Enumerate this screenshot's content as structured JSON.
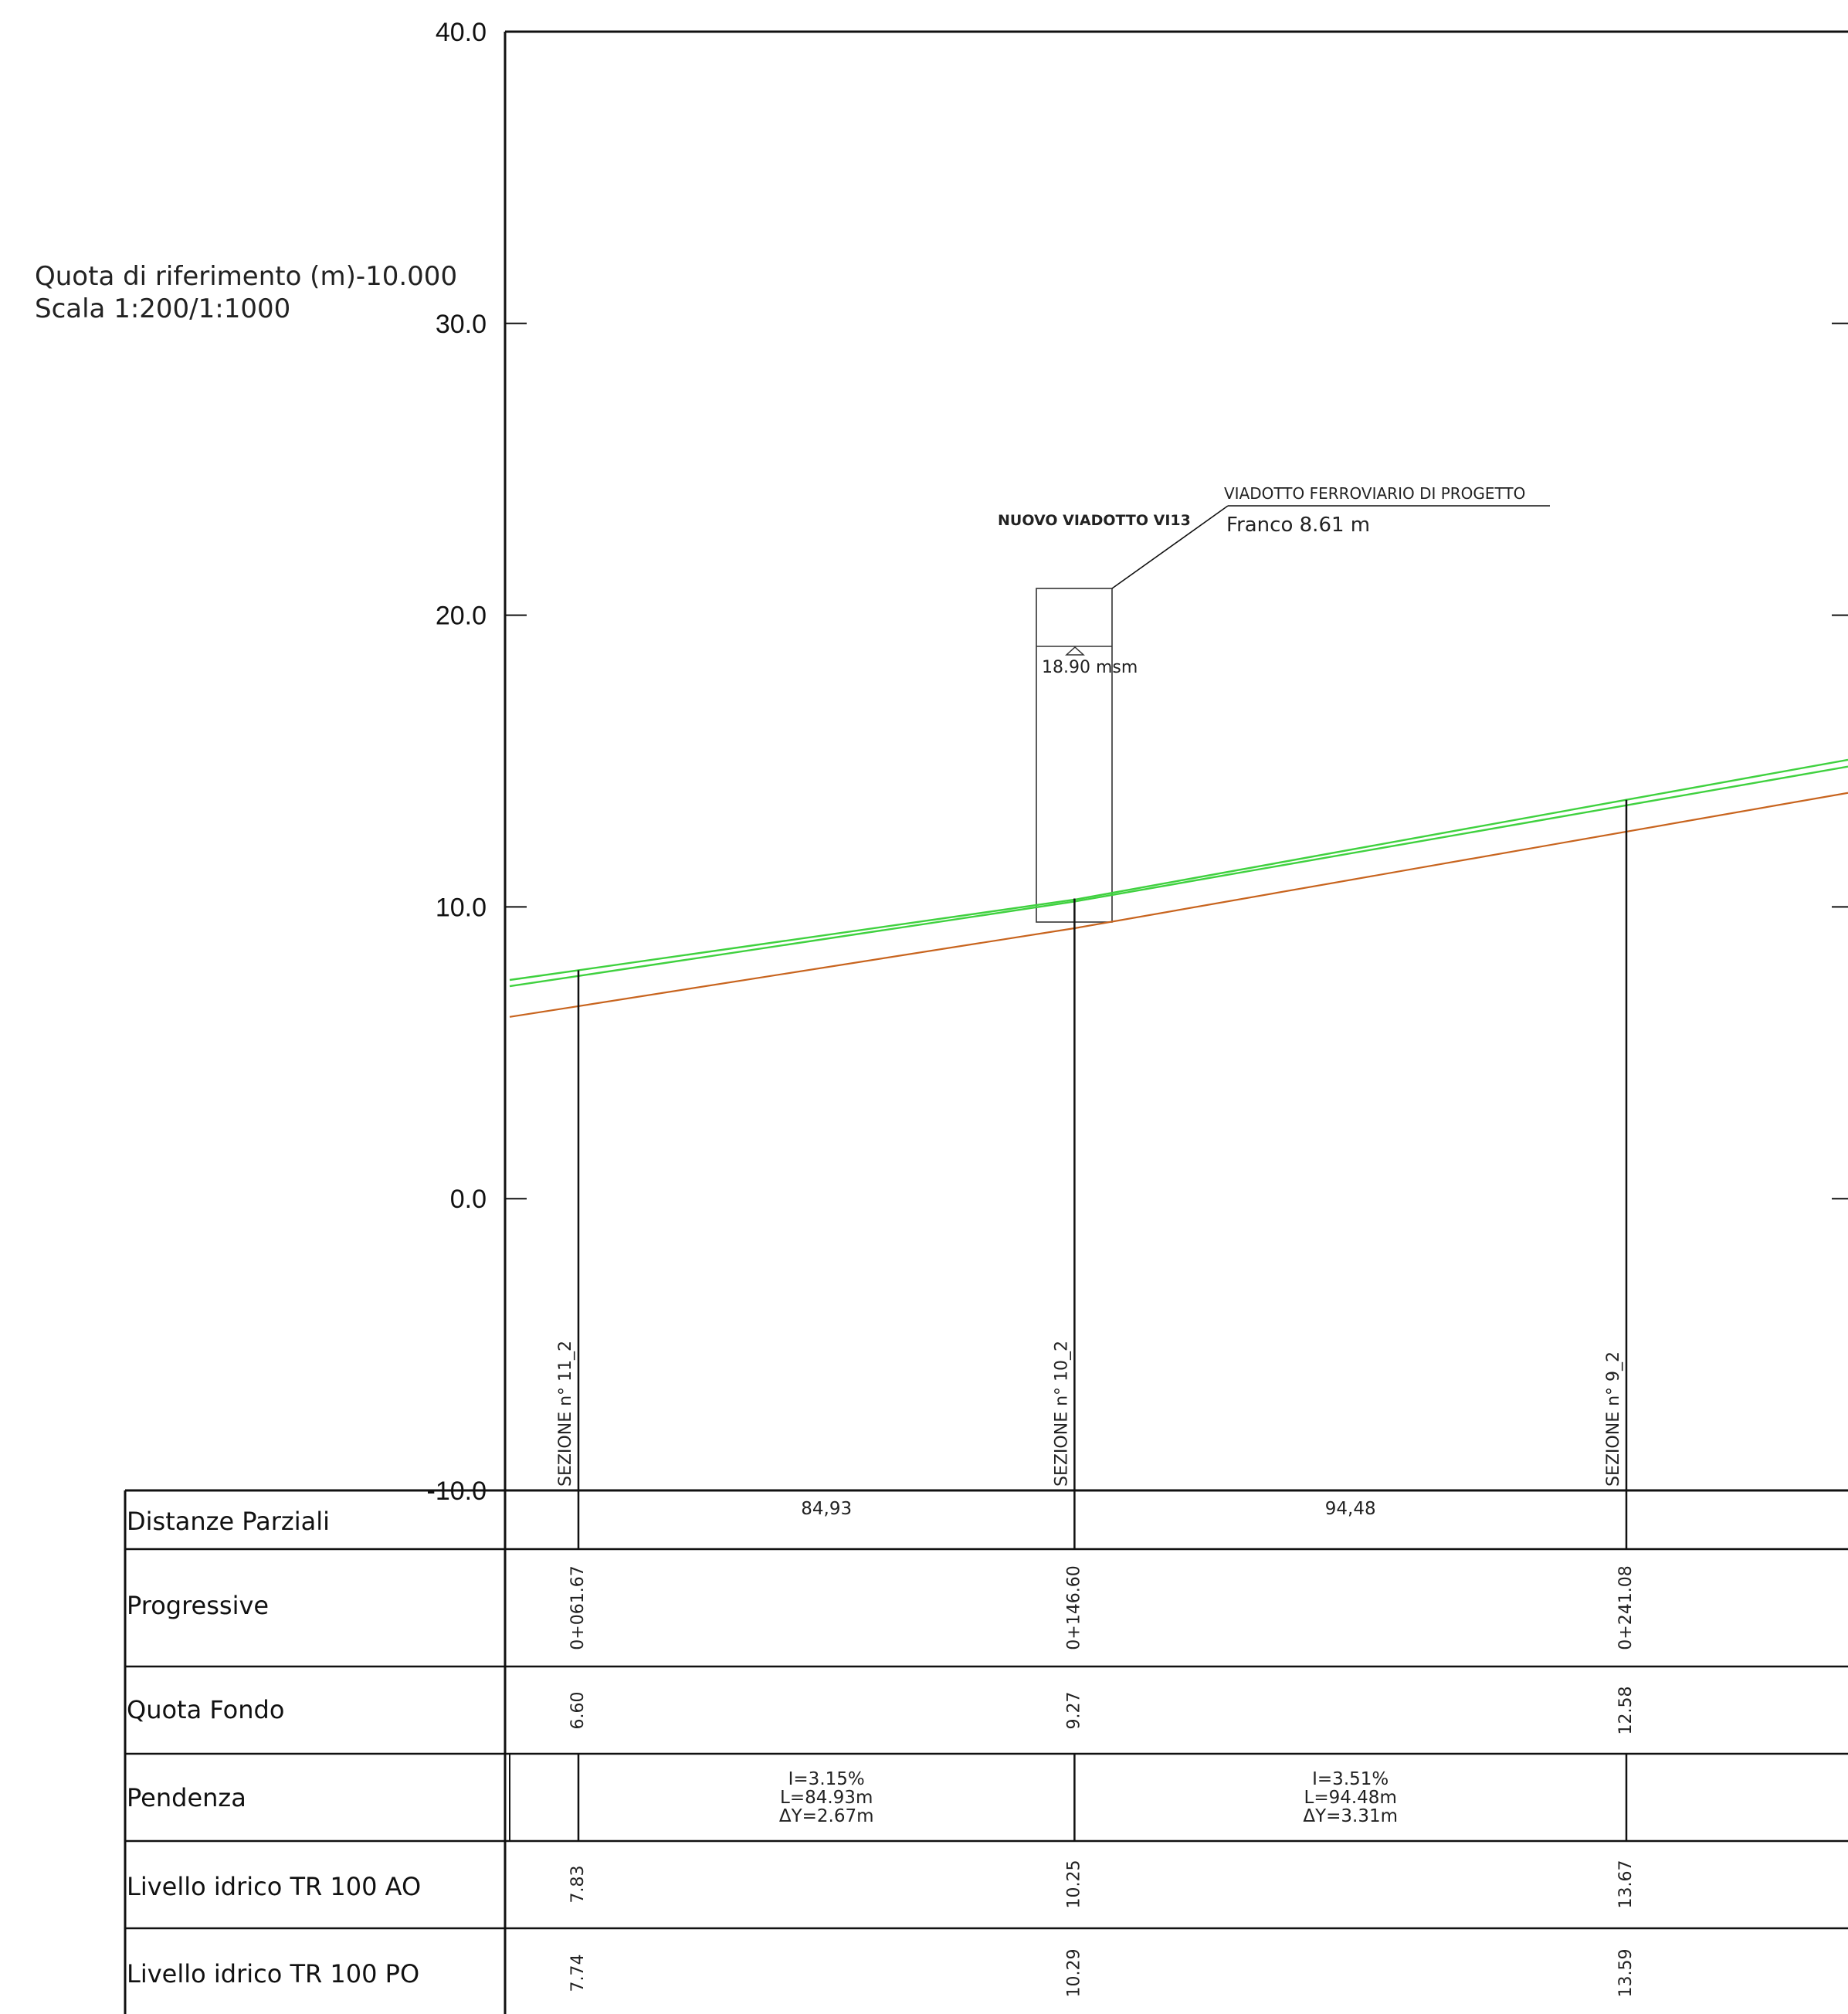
{
  "header": {
    "reference_line": "Quota di riferimento (m)-10.000",
    "scale_line": "Scala 1:200/1:1000"
  },
  "annotations": {
    "viaduct_name": "NUOVO VIADOTTO VI13",
    "viaduct_desc": "VIADOTTO FERROVIARIO DI PROGETTO",
    "franco": "Franco 8.61 m",
    "deck_level": "18.90 msm"
  },
  "sections": [
    {
      "label": "SEZIONE n° 11_2",
      "progressive": "0+061.67",
      "quota_fondo": "6.60",
      "livello_ao": "7.83",
      "livello_po": "7.74"
    },
    {
      "label": "SEZIONE n° 10_2",
      "progressive": "0+146.60",
      "quota_fondo": "9.27",
      "livello_ao": "10.25",
      "livello_po": "10.29"
    },
    {
      "label": "SEZIONE n° 9_2",
      "progressive": "0+241.08",
      "quota_fondo": "12.58",
      "livello_ao": "13.67",
      "livello_po": "13.59"
    }
  ],
  "segments": [
    {
      "distance": "84,93",
      "slope": "I=3.15%",
      "length": "L=84.93m",
      "delta": "ΔY=2.67m"
    },
    {
      "distance": "94,48",
      "slope": "I=3.51%",
      "length": "L=94.48m",
      "delta": "ΔY=3.31m"
    }
  ],
  "table": {
    "rows": [
      "Distanze Parziali",
      "Progressive",
      "Quota Fondo",
      "Pendenza",
      "Livello idrico TR 100 AO",
      "Livello idrico TR 100 PO"
    ]
  },
  "colors": {
    "water_surface": "#3fd13f",
    "bed": "#c8641e",
    "lines": "#111111"
  },
  "chart_data": {
    "type": "line",
    "title": "",
    "xlabel": "",
    "ylabel": "",
    "ylim": [
      -10,
      40
    ],
    "yticks": [
      "40.0",
      "30.0",
      "20.0",
      "10.0",
      "0.0",
      "-10.0"
    ],
    "grid": false,
    "series": [
      {
        "x": [
          61.67,
          146.6,
          241.08
        ],
        "values": [
          6.6,
          9.27,
          12.58
        ]
      },
      {
        "x": [
          61.67,
          146.6,
          241.08
        ],
        "values": [
          7.83,
          10.25,
          13.67
        ]
      },
      {
        "x": [
          61.67,
          146.6,
          241.08
        ],
        "values": [
          7.74,
          10.29,
          13.59
        ]
      }
    ]
  }
}
